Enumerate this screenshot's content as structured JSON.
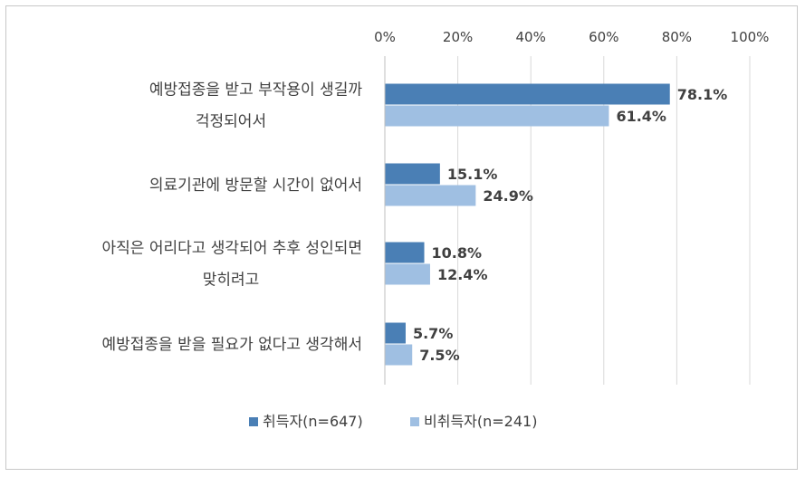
{
  "chart_data": {
    "type": "bar",
    "orientation": "horizontal",
    "categories": [
      [
        "예방접종을 받고 부작용이 생길까",
        "걱정되어서"
      ],
      [
        "의료기관에 방문할 시간이 없어서"
      ],
      [
        "아직은 어리다고 생각되어 추후 성인되면",
        "맞히려고"
      ],
      [
        "예방접종을 받을 필요가 없다고 생각해서"
      ]
    ],
    "series": [
      {
        "name": "취득자(n=647)",
        "values": [
          78.1,
          15.1,
          10.8,
          5.7
        ],
        "labels": [
          "78.1%",
          "15.1%",
          "10.8%",
          "5.7%"
        ],
        "color": "#4a7fb5"
      },
      {
        "name": "비취득자(n=241)",
        "values": [
          61.4,
          24.9,
          12.4,
          7.5
        ],
        "labels": [
          "61.4%",
          "24.9%",
          "12.4%",
          "7.5%"
        ],
        "color": "#9fbfe2"
      }
    ],
    "xlim": [
      0,
      100
    ],
    "x_ticks": [
      "0%",
      "20%",
      "40%",
      "60%",
      "80%",
      "100%"
    ],
    "x_tick_values": [
      0,
      20,
      40,
      60,
      80,
      100
    ],
    "x_axis_position": "top",
    "grid": true,
    "legend_position": "bottom"
  }
}
